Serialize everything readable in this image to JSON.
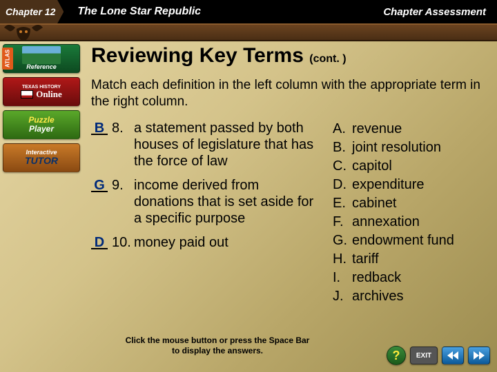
{
  "topbar": {
    "chapter": "Chapter 12",
    "title": "The Lone Star Republic",
    "right": "Chapter Assessment"
  },
  "sidebar": {
    "atlas_tab": "ATLAS",
    "atlas_label": "Reference",
    "online_top": "TEXAS HISTORY",
    "online_label": "Online",
    "puzzle_top": "Puzzle",
    "puzzle_bottom": "Player",
    "tutor_top": "Interactive",
    "tutor_main": "TUTOR"
  },
  "content": {
    "title": "Reviewing Key Terms",
    "title_suffix": "(cont. )",
    "instructions": "Match each definition in the left column with the appropriate term in the right column.",
    "title_fontsize": 30,
    "body_fontsize": 20,
    "answer_color": "#002a7a",
    "questions": [
      {
        "answer": "B",
        "num": "8.",
        "text": "a statement passed by both houses of legislature that has the force of law"
      },
      {
        "answer": "G",
        "num": "9.",
        "text": "income derived from donations that is set aside for a specific purpose"
      },
      {
        "answer": "D",
        "num": "10.",
        "text": "money paid out"
      }
    ],
    "terms": [
      {
        "letter": "A.",
        "term": "revenue"
      },
      {
        "letter": "B.",
        "term": "joint resolution"
      },
      {
        "letter": "C.",
        "term": "capitol"
      },
      {
        "letter": "D.",
        "term": "expenditure"
      },
      {
        "letter": "E.",
        "term": "cabinet"
      },
      {
        "letter": "F.",
        "term": "annexation"
      },
      {
        "letter": "G.",
        "term": "endowment fund"
      },
      {
        "letter": "H.",
        "term": "tariff"
      },
      {
        "letter": "I.",
        "term": "redback"
      },
      {
        "letter": "J.",
        "term": "archives"
      }
    ]
  },
  "prompt": "Click the mouse button or press the Space Bar to display the answers.",
  "nav": {
    "help": "?",
    "exit": "EXIT"
  },
  "colors": {
    "bg_grad_start": "#e8d9a8",
    "bg_grad_end": "#9c8c4f",
    "topbar_bg": "#000000",
    "chapter_bg": "#4a3018",
    "horn_bg": "#4a2e14"
  }
}
